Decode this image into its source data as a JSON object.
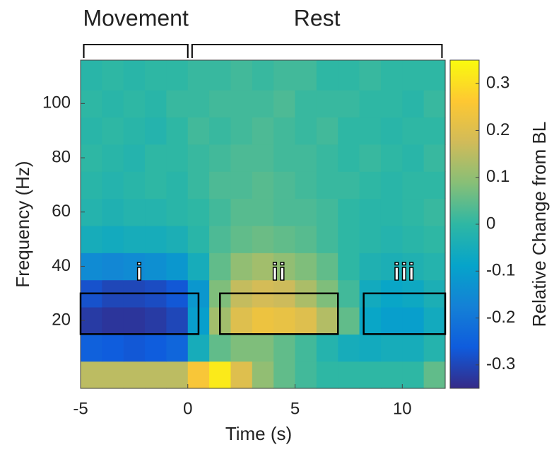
{
  "chart_data": {
    "type": "heatmap",
    "x_label": "Time (s)",
    "y_label": "Frequency (Hz)",
    "colorbar_label": "Relative Change from BL",
    "xlim": [
      -5,
      12
    ],
    "ylim": [
      -5,
      116
    ],
    "xticks": [
      -5,
      0,
      5,
      10
    ],
    "yticks": [
      20,
      40,
      60,
      80,
      100
    ],
    "clim": [
      -0.35,
      0.35
    ],
    "cticks": [
      -0.3,
      -0.2,
      -0.1,
      0,
      0.1,
      0.2,
      0.3
    ],
    "colormap": [
      "#352a87",
      "#0f5cdd",
      "#1481d6",
      "#06a4ca",
      "#2eb7a4",
      "#87bf77",
      "#d1bb59",
      "#fec832",
      "#f9fb0e"
    ],
    "x_bins": [
      -5,
      -4,
      -3,
      -2,
      -1,
      0,
      1,
      2,
      3,
      4,
      5,
      6,
      7,
      8,
      9,
      10,
      11,
      12
    ],
    "y_bins": [
      -5,
      5,
      15,
      25,
      35,
      45,
      55,
      65,
      75,
      85,
      95,
      105,
      116
    ],
    "z": [
      [
        0.15,
        0.15,
        0.15,
        0.15,
        0.15,
        0.25,
        0.32,
        0.2,
        0.1,
        0.05,
        0.02,
        0,
        0,
        0,
        0,
        0,
        0.05
      ],
      [
        -0.25,
        -0.26,
        -0.27,
        -0.26,
        -0.24,
        -0.05,
        0.05,
        0.08,
        0.08,
        0.05,
        0.02,
        -0.02,
        -0.05,
        -0.06,
        -0.05,
        -0.05,
        -0.02
      ],
      [
        -0.32,
        -0.33,
        -0.33,
        -0.32,
        -0.3,
        -0.1,
        0.12,
        0.2,
        0.23,
        0.22,
        0.2,
        0.14,
        0.05,
        -0.08,
        -0.1,
        -0.1,
        -0.06
      ],
      [
        -0.28,
        -0.3,
        -0.3,
        -0.29,
        -0.27,
        -0.12,
        0.08,
        0.16,
        0.18,
        0.17,
        0.13,
        0.08,
        0.02,
        -0.06,
        -0.08,
        -0.07,
        -0.04
      ],
      [
        -0.15,
        -0.16,
        -0.15,
        -0.14,
        -0.12,
        -0.05,
        0.05,
        0.1,
        0.12,
        0.1,
        0.08,
        0.05,
        0,
        -0.03,
        -0.04,
        -0.03,
        -0.02
      ],
      [
        -0.05,
        -0.06,
        -0.05,
        -0.05,
        -0.04,
        -0.01,
        0.03,
        0.05,
        0.06,
        0.05,
        0.04,
        0.02,
        0,
        -0.01,
        -0.02,
        -0.01,
        0
      ],
      [
        -0.02,
        -0.03,
        -0.02,
        -0.02,
        -0.01,
        0,
        0.02,
        0.04,
        0.04,
        0.03,
        0.03,
        0.02,
        0,
        -0.01,
        -0.01,
        0,
        0.01
      ],
      [
        -0.01,
        -0.02,
        -0.01,
        0,
        -0.01,
        0.01,
        0.03,
        0.03,
        0.04,
        0.03,
        0.02,
        0.01,
        0.01,
        0,
        -0.01,
        0,
        0
      ],
      [
        0,
        -0.01,
        -0.02,
        0,
        0,
        0.01,
        0.02,
        0.03,
        0.03,
        0.02,
        0.02,
        0.01,
        0,
        0.01,
        0,
        -0.01,
        0.01
      ],
      [
        -0.01,
        0,
        -0.01,
        -0.02,
        0,
        0.02,
        0.01,
        0.02,
        0.03,
        0.02,
        0.01,
        0.02,
        0,
        0,
        -0.01,
        0,
        0
      ],
      [
        0,
        -0.01,
        0,
        -0.01,
        0.01,
        0.01,
        0.02,
        0.02,
        0.02,
        0.03,
        0.01,
        0.01,
        0.01,
        0,
        0,
        -0.01,
        0.01
      ],
      [
        -0.01,
        0,
        -0.01,
        0,
        0,
        0.01,
        0.01,
        0.02,
        0.01,
        0.02,
        0.02,
        0,
        0,
        0.01,
        0,
        0,
        0
      ]
    ],
    "brackets": [
      {
        "label": "Movement",
        "x": [
          -4.85,
          0
        ]
      },
      {
        "label": "Rest",
        "x": [
          0.2,
          11.85
        ]
      }
    ],
    "regions": [
      {
        "label": "i",
        "x": [
          -5,
          0.5
        ],
        "y": [
          15,
          30
        ]
      },
      {
        "label": "ii",
        "x": [
          1.5,
          7
        ],
        "y": [
          15,
          30
        ]
      },
      {
        "label": "iii",
        "x": [
          8.2,
          12
        ],
        "y": [
          15,
          30
        ]
      }
    ]
  }
}
